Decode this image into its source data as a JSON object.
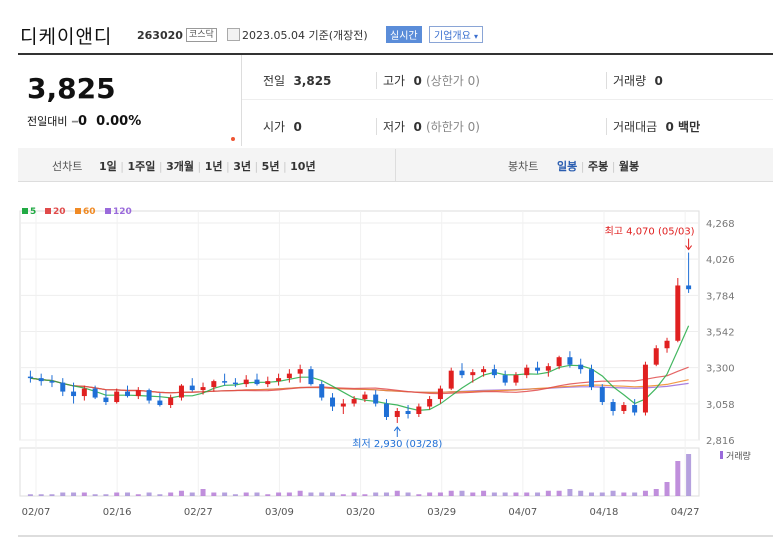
{
  "header": {
    "name": "디케이앤디",
    "code": "263020",
    "market": "코스닥",
    "date": "2023.05.04 기준(개장전)",
    "realtime": "실시간",
    "company": "기업개요"
  },
  "quote": {
    "price": "3,825",
    "change_label": "전일대비",
    "change": "0",
    "change_pct": "0.00%",
    "prev_close_label": "전일",
    "prev_close": "3,825",
    "high_label": "고가",
    "high": "0",
    "upper_limit": "(상한가 0)",
    "volume_label": "거래량",
    "volume": "0",
    "open_label": "시가",
    "open": "0",
    "low_label": "저가",
    "low": "0",
    "lower_limit": "(하한가 0)",
    "value_label": "거래대금",
    "value": "0 백만"
  },
  "tabs": {
    "line_chart": "선차트",
    "periods": [
      "1일",
      "1주일",
      "3개월",
      "1년",
      "3년",
      "5년",
      "10년"
    ],
    "candle_chart": "봉차트",
    "candle_periods": [
      "일봉",
      "주봉",
      "월봉"
    ],
    "active_candle": "일봉"
  },
  "chart_data": {
    "type": "candlestick",
    "legend": [
      {
        "name": "5",
        "color": "#22aa44"
      },
      {
        "name": "20",
        "color": "#e04a4a"
      },
      {
        "name": "60",
        "color": "#f08a24"
      },
      {
        "name": "120",
        "color": "#9a6adb"
      }
    ],
    "yticks": [
      "4,268",
      "4,026",
      "3,784",
      "3,542",
      "3,300",
      "3,058",
      "2,816"
    ],
    "ylim": [
      2816,
      4268
    ],
    "xticks": [
      "02/07",
      "02/16",
      "02/27",
      "03/09",
      "03/20",
      "03/29",
      "04/07",
      "04/18",
      "04/27"
    ],
    "annotations": {
      "high": "최고 4,070 (05/03)",
      "low": "최저 2,930 (03/28)"
    },
    "volume_label": "거래량",
    "candles": [
      [
        3240,
        3280,
        3200,
        3230
      ],
      [
        3230,
        3260,
        3180,
        3210
      ],
      [
        3210,
        3250,
        3170,
        3200
      ],
      [
        3200,
        3230,
        3110,
        3140
      ],
      [
        3140,
        3200,
        3060,
        3110
      ],
      [
        3110,
        3180,
        3080,
        3160
      ],
      [
        3160,
        3180,
        3090,
        3100
      ],
      [
        3100,
        3150,
        3050,
        3070
      ],
      [
        3070,
        3160,
        3060,
        3140
      ],
      [
        3140,
        3180,
        3100,
        3110
      ],
      [
        3110,
        3170,
        3090,
        3150
      ],
      [
        3150,
        3160,
        3060,
        3080
      ],
      [
        3080,
        3130,
        3040,
        3050
      ],
      [
        3050,
        3120,
        3030,
        3100
      ],
      [
        3100,
        3190,
        3080,
        3180
      ],
      [
        3180,
        3230,
        3140,
        3150
      ],
      [
        3150,
        3200,
        3120,
        3170
      ],
      [
        3170,
        3220,
        3140,
        3210
      ],
      [
        3210,
        3260,
        3180,
        3200
      ],
      [
        3200,
        3230,
        3170,
        3190
      ],
      [
        3190,
        3250,
        3170,
        3220
      ],
      [
        3220,
        3260,
        3180,
        3190
      ],
      [
        3190,
        3240,
        3170,
        3210
      ],
      [
        3210,
        3260,
        3180,
        3230
      ],
      [
        3230,
        3290,
        3200,
        3260
      ],
      [
        3260,
        3320,
        3200,
        3290
      ],
      [
        3290,
        3310,
        3180,
        3190
      ],
      [
        3190,
        3210,
        3080,
        3100
      ],
      [
        3100,
        3130,
        3010,
        3040
      ],
      [
        3040,
        3090,
        2990,
        3060
      ],
      [
        3060,
        3110,
        3040,
        3090
      ],
      [
        3090,
        3140,
        3070,
        3120
      ],
      [
        3120,
        3150,
        3040,
        3060
      ],
      [
        3060,
        3090,
        2950,
        2970
      ],
      [
        2970,
        3030,
        2930,
        3010
      ],
      [
        3010,
        3050,
        2960,
        2990
      ],
      [
        2990,
        3060,
        2970,
        3040
      ],
      [
        3040,
        3110,
        3020,
        3090
      ],
      [
        3090,
        3180,
        3060,
        3160
      ],
      [
        3160,
        3300,
        3150,
        3280
      ],
      [
        3280,
        3330,
        3230,
        3250
      ],
      [
        3250,
        3290,
        3200,
        3270
      ],
      [
        3270,
        3310,
        3240,
        3290
      ],
      [
        3290,
        3320,
        3230,
        3250
      ],
      [
        3250,
        3280,
        3180,
        3200
      ],
      [
        3200,
        3270,
        3180,
        3250
      ],
      [
        3250,
        3320,
        3230,
        3300
      ],
      [
        3300,
        3340,
        3260,
        3280
      ],
      [
        3280,
        3330,
        3240,
        3310
      ],
      [
        3310,
        3380,
        3290,
        3370
      ],
      [
        3370,
        3410,
        3300,
        3320
      ],
      [
        3320,
        3360,
        3260,
        3290
      ],
      [
        3290,
        3320,
        3150,
        3170
      ],
      [
        3170,
        3190,
        3050,
        3070
      ],
      [
        3070,
        3090,
        2980,
        3010
      ],
      [
        3010,
        3070,
        2990,
        3050
      ],
      [
        3050,
        3090,
        2980,
        3000
      ],
      [
        3000,
        3340,
        2980,
        3320
      ],
      [
        3320,
        3450,
        3310,
        3430
      ],
      [
        3430,
        3500,
        3400,
        3480
      ],
      [
        3480,
        3900,
        3470,
        3850
      ],
      [
        3850,
        4070,
        3800,
        3825
      ]
    ],
    "volumes": [
      1,
      1,
      1,
      2,
      2,
      2,
      1,
      1,
      2,
      2,
      1,
      2,
      1,
      2,
      3,
      2,
      4,
      2,
      2,
      1,
      2,
      2,
      1,
      2,
      2,
      3,
      2,
      2,
      2,
      1,
      2,
      1,
      2,
      2,
      3,
      2,
      1,
      2,
      2,
      3,
      3,
      2,
      3,
      2,
      2,
      2,
      2,
      2,
      3,
      3,
      4,
      3,
      2,
      2,
      3,
      2,
      2,
      3,
      4,
      8,
      20,
      24
    ]
  }
}
